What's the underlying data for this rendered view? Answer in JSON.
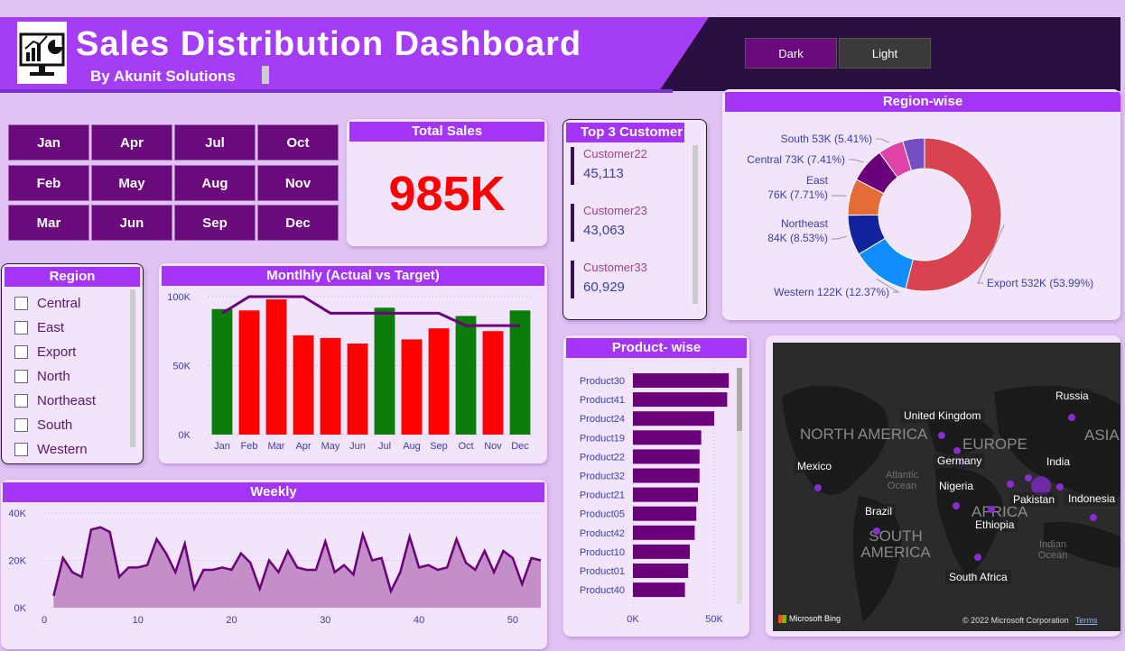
{
  "header": {
    "title": "Sales Distribution Dashboard",
    "subtitle": "By Akunit  Solutions",
    "theme_buttons": [
      "Dark",
      "Light"
    ]
  },
  "months": [
    "Jan",
    "Apr",
    "Jul",
    "Oct",
    "Feb",
    "May",
    "Aug",
    "Nov",
    "Mar",
    "Jun",
    "Sep",
    "Dec"
  ],
  "total_sales": {
    "title": "Total Sales",
    "value": "985K"
  },
  "top_customers": {
    "title": "Top 3 Customer",
    "items": [
      {
        "name": "Customer22",
        "value": "45,113"
      },
      {
        "name": "Customer23",
        "value": "43,063"
      },
      {
        "name": "Customer33",
        "value": "60,929"
      }
    ]
  },
  "region_slicer": {
    "title": "Region",
    "items": [
      "Central",
      "East",
      "Export",
      "North",
      "Northeast",
      "South",
      "Western"
    ]
  },
  "map": {
    "labels": [
      "Russia",
      "United Kingdom",
      "Germany",
      "India",
      "Mexico",
      "Nigeria",
      "Pakistan",
      "Indonesia",
      "Brazil",
      "Ethiopia",
      "South Africa"
    ],
    "continents": [
      "NORTH AMERICA",
      "EUROPE",
      "ASIA",
      "AFRICA",
      "SOUTH AMERICA"
    ],
    "oceans": [
      "Atlantic Ocean",
      "Indian Ocean"
    ],
    "footer_brand": "Microsoft Bing",
    "copyright": "© 2022 Microsoft Corporation",
    "terms": "Terms"
  },
  "chart_data": [
    {
      "type": "donut",
      "title": "Region-wise",
      "slices": [
        {
          "label": "Export 532K (53.99%)",
          "value": 53.99,
          "color": "#d9424f"
        },
        {
          "label": "Western 122K (12.37%)",
          "value": 12.37,
          "color": "#118dff"
        },
        {
          "label": "Northeast 84K (8.53%)",
          "value": 8.53,
          "color": "#12239e"
        },
        {
          "label": "East 76K (7.71%)",
          "value": 7.71,
          "color": "#e66c37"
        },
        {
          "label": "Central 73K (7.41%)",
          "value": 7.41,
          "color": "#6b007b"
        },
        {
          "label": "South 53K (5.41%)",
          "value": 5.41,
          "color": "#e044a7"
        },
        {
          "label": "",
          "value": 4.58,
          "color": "#744ec2"
        }
      ]
    },
    {
      "type": "bar",
      "title": "Montlhly (Actual vs Target)",
      "categories": [
        "Jan",
        "Feb",
        "Mar",
        "Apr",
        "May",
        "Jun",
        "Jul",
        "Aug",
        "Sep",
        "Oct",
        "Nov",
        "Dec"
      ],
      "series": [
        {
          "values": [
            91,
            90,
            98,
            72,
            70,
            66,
            92,
            69,
            77,
            86,
            75,
            90
          ],
          "colors": [
            "#0a7d0a",
            "#ff0000",
            "#ff0000",
            "#ff0000",
            "#ff0000",
            "#ff0000",
            "#0a7d0a",
            "#ff0000",
            "#ff0000",
            "#0a7d0a",
            "#ff0000",
            "#0a7d0a"
          ]
        },
        {
          "values": [
            88,
            100,
            100,
            100,
            88,
            88,
            88,
            88,
            88,
            79,
            79,
            79
          ],
          "color": "#6b007b"
        }
      ],
      "yticks": [
        "0K",
        "50K",
        "100K"
      ],
      "ylim": [
        0,
        100
      ]
    },
    {
      "type": "area",
      "title": "Weekly",
      "x": [
        1,
        2,
        3,
        4,
        5,
        6,
        7,
        8,
        9,
        10,
        11,
        12,
        13,
        14,
        15,
        16,
        17,
        18,
        19,
        20,
        21,
        22,
        23,
        24,
        25,
        26,
        27,
        28,
        29,
        30,
        31,
        32,
        33,
        34,
        35,
        36,
        37,
        38,
        39,
        40,
        41,
        42,
        43,
        44,
        45,
        46,
        47,
        48,
        49,
        50,
        51,
        52,
        53
      ],
      "values": [
        5,
        21,
        15,
        13,
        33,
        34,
        32,
        13,
        17,
        17,
        18,
        29,
        23,
        15,
        27,
        8,
        16,
        16,
        17,
        16,
        23,
        19,
        8,
        20,
        15,
        24,
        17,
        16,
        16,
        28,
        15,
        18,
        14,
        31,
        20,
        21,
        7,
        15,
        30,
        17,
        18,
        16,
        17,
        29,
        19,
        16,
        24,
        15,
        24,
        21,
        10,
        21,
        20
      ],
      "xticks": [
        0,
        10,
        20,
        30,
        40,
        50
      ],
      "yticks": [
        "0K",
        "20K",
        "40K"
      ],
      "ylim": [
        0,
        40
      ]
    },
    {
      "type": "bar",
      "orientation": "horizontal",
      "title": "Product- wise",
      "categories": [
        "Product30",
        "Product41",
        "Product24",
        "Product19",
        "Product22",
        "Product32",
        "Product21",
        "Product05",
        "Product42",
        "Product10",
        "Product01",
        "Product40"
      ],
      "values": [
        59,
        58,
        50,
        42,
        41,
        41,
        40,
        39,
        38,
        35,
        34,
        32
      ],
      "xticks": [
        "0K",
        "50K"
      ],
      "xlim": [
        0,
        60
      ]
    }
  ]
}
